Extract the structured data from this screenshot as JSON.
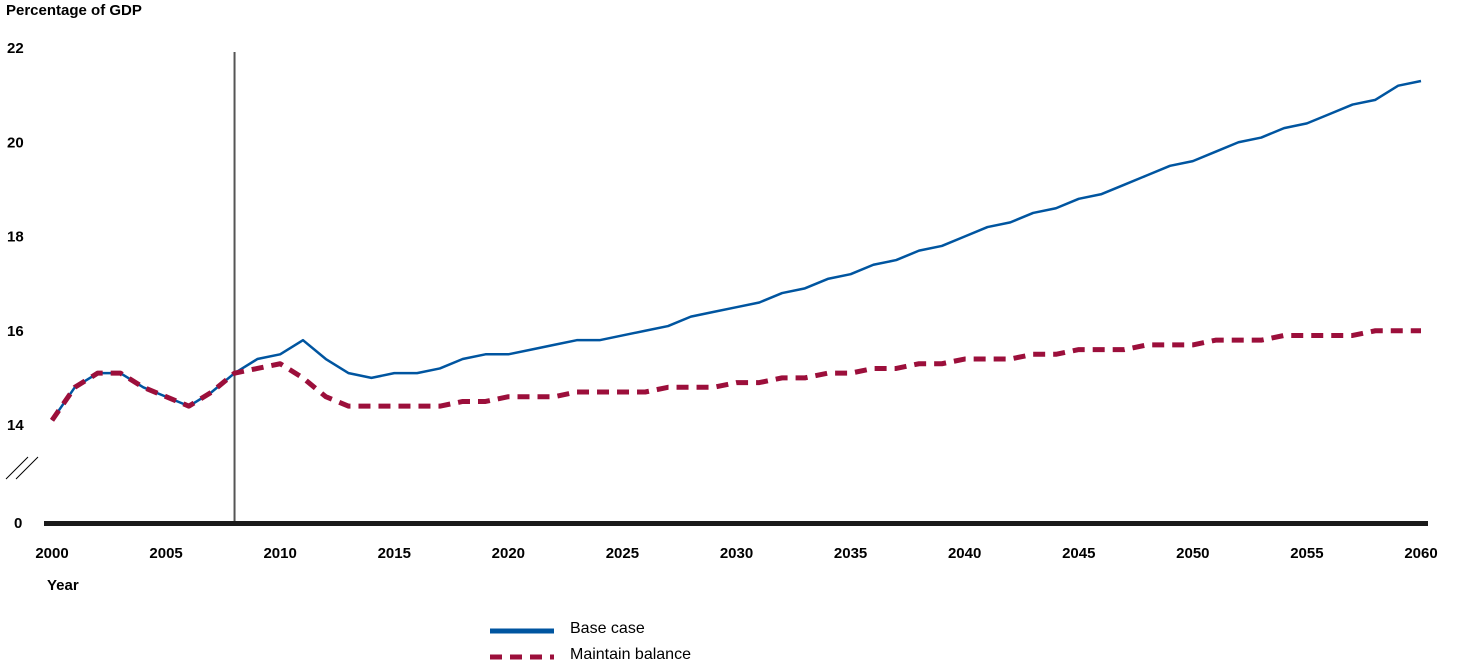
{
  "chart_data": {
    "type": "line",
    "ylabel": "Percentage of GDP",
    "xlabel": "Year",
    "xlim": [
      2000,
      2060
    ],
    "ylim": [
      13.6,
      22
    ],
    "ylim_note_ticks": [
      14,
      16,
      18,
      20,
      22
    ],
    "y_zero_label": "0",
    "y_ticks": [
      "22",
      "20",
      "18",
      "16",
      "14"
    ],
    "x_ticks": [
      "2000",
      "2005",
      "2010",
      "2015",
      "2020",
      "2025",
      "2030",
      "2035",
      "2040",
      "2045",
      "2050",
      "2055",
      "2060"
    ],
    "reference_line_x": 2008,
    "x": [
      2000,
      2001,
      2002,
      2003,
      2004,
      2005,
      2006,
      2007,
      2008,
      2009,
      2010,
      2011,
      2012,
      2013,
      2014,
      2015,
      2016,
      2017,
      2018,
      2019,
      2020,
      2021,
      2022,
      2023,
      2024,
      2025,
      2026,
      2027,
      2028,
      2029,
      2030,
      2031,
      2032,
      2033,
      2034,
      2035,
      2036,
      2037,
      2038,
      2039,
      2040,
      2041,
      2042,
      2043,
      2044,
      2045,
      2046,
      2047,
      2048,
      2049,
      2050,
      2051,
      2052,
      2053,
      2054,
      2055,
      2056,
      2057,
      2058,
      2059,
      2060
    ],
    "series": [
      {
        "name": "Base case",
        "color": "#0055a0",
        "style": "solid",
        "values": [
          14.1,
          14.8,
          15.1,
          15.1,
          14.8,
          14.6,
          14.4,
          14.7,
          15.1,
          15.4,
          15.5,
          15.8,
          15.4,
          15.1,
          15.0,
          15.1,
          15.1,
          15.2,
          15.4,
          15.5,
          15.5,
          15.6,
          15.7,
          15.8,
          15.8,
          15.9,
          16.0,
          16.1,
          16.3,
          16.4,
          16.5,
          16.6,
          16.8,
          16.9,
          17.1,
          17.2,
          17.4,
          17.5,
          17.7,
          17.8,
          18.0,
          18.2,
          18.3,
          18.5,
          18.6,
          18.8,
          18.9,
          19.1,
          19.3,
          19.5,
          19.6,
          19.8,
          20.0,
          20.1,
          20.3,
          20.4,
          20.6,
          20.8,
          20.9,
          21.2,
          21.3
        ]
      },
      {
        "name": "Maintain balance",
        "color": "#9c0f3b",
        "style": "dashed",
        "values": [
          14.1,
          14.8,
          15.1,
          15.1,
          14.8,
          14.6,
          14.4,
          14.7,
          15.1,
          15.2,
          15.3,
          15.0,
          14.6,
          14.4,
          14.4,
          14.4,
          14.4,
          14.4,
          14.5,
          14.5,
          14.6,
          14.6,
          14.6,
          14.7,
          14.7,
          14.7,
          14.7,
          14.8,
          14.8,
          14.8,
          14.9,
          14.9,
          15.0,
          15.0,
          15.1,
          15.1,
          15.2,
          15.2,
          15.3,
          15.3,
          15.4,
          15.4,
          15.4,
          15.5,
          15.5,
          15.6,
          15.6,
          15.6,
          15.7,
          15.7,
          15.7,
          15.8,
          15.8,
          15.8,
          15.9,
          15.9,
          15.9,
          15.9,
          16.0,
          16.0,
          16.0
        ]
      }
    ],
    "legend": [
      {
        "label": "Base case",
        "color": "#0055a0",
        "style": "solid"
      },
      {
        "label": "Maintain balance",
        "color": "#9c0f3b",
        "style": "dashed"
      }
    ],
    "legend_placement": "bottom-center",
    "grid": false
  }
}
